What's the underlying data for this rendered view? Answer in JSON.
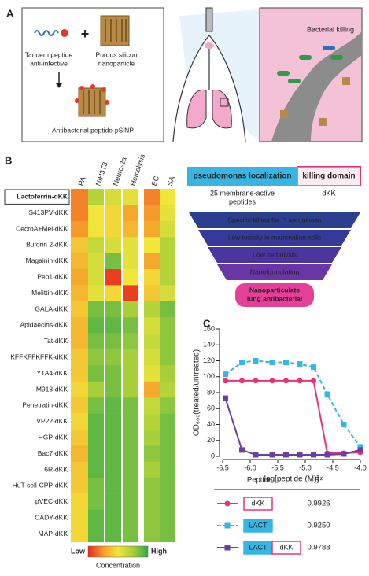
{
  "panel_labels": [
    "A",
    "B",
    "C"
  ],
  "panel_a": {
    "peptide": [
      "Tandem peptide",
      "anti-infective"
    ],
    "plus": "+",
    "particle": [
      "Porous silicon",
      "nanoparticle"
    ],
    "product": "Antibacterial peptide-pSiNP",
    "zoom": "Bacterial killing"
  },
  "flow": {
    "domains": [
      "pseudomonas localization",
      "killing domain"
    ],
    "domain_notes": [
      [
        "25 membrane-active",
        "peptides"
      ],
      [
        "dKK"
      ]
    ],
    "steps": [
      "Specific killing for P. aeruginosa",
      "Low toxicity in mammalian cells",
      "Low hemolysis",
      "Nanoformulation"
    ],
    "result": [
      "Nanoparticulate",
      "lung antibacterial"
    ]
  },
  "chart_data": [
    {
      "type": "heatmap",
      "columns": [
        "PA",
        "NIH3T3",
        "Neuro-2a",
        "Hemolysis",
        "EC",
        "SA"
      ],
      "rows": [
        "Lactoferrin-dKK",
        "S413PV-dKK",
        "CecroA+Mel-dKK",
        "Buforin 2-dKK",
        "Magainin-dKK",
        "Pep1-dKK",
        "Melittin-dKK",
        "GALA-dKK",
        "Apidaecins-dKK",
        "Tat-dKK",
        "KFFKFFKFFK-dKK",
        "YTA4-dKK",
        "M918-dKK",
        "Penetratin-dKK",
        "VP22-dKK",
        "HGP-dKK",
        "Bac7-dKK",
        "6R-dKK",
        "HuT-cell-CPP-dKK",
        "pVEC-dKK",
        "CADY-dKK",
        "MAP-dKK"
      ],
      "values": [
        [
          0.2,
          0.7,
          0.6,
          0.55,
          0.2,
          0.5
        ],
        [
          0.2,
          0.5,
          0.45,
          0.3,
          0.25,
          0.55
        ],
        [
          0.25,
          0.5,
          0.45,
          0.35,
          0.3,
          0.6
        ],
        [
          0.4,
          0.65,
          0.6,
          0.55,
          0.5,
          0.7
        ],
        [
          0.35,
          0.6,
          0.85,
          0.55,
          0.3,
          0.7
        ],
        [
          0.3,
          0.6,
          0.05,
          0.5,
          0.45,
          0.7
        ],
        [
          0.35,
          0.55,
          0.45,
          0.05,
          0.4,
          0.6
        ],
        [
          0.4,
          0.85,
          0.85,
          0.75,
          0.7,
          0.85
        ],
        [
          0.35,
          0.9,
          0.9,
          0.85,
          0.6,
          0.8
        ],
        [
          0.35,
          0.85,
          0.85,
          0.8,
          0.65,
          0.8
        ],
        [
          0.4,
          0.8,
          0.8,
          0.75,
          0.6,
          0.8
        ],
        [
          0.4,
          0.85,
          0.85,
          0.75,
          0.55,
          0.75
        ],
        [
          0.45,
          0.75,
          0.85,
          0.75,
          0.3,
          0.7
        ],
        [
          0.4,
          0.85,
          0.9,
          0.85,
          0.65,
          0.8
        ],
        [
          0.45,
          0.9,
          0.9,
          0.85,
          0.7,
          0.85
        ],
        [
          0.4,
          0.9,
          0.9,
          0.85,
          0.75,
          0.85
        ],
        [
          0.35,
          0.9,
          0.9,
          0.85,
          0.8,
          0.85
        ],
        [
          0.4,
          0.9,
          0.9,
          0.85,
          0.75,
          0.85
        ],
        [
          0.4,
          0.85,
          0.9,
          0.85,
          0.8,
          0.85
        ],
        [
          0.45,
          0.85,
          0.9,
          0.85,
          0.8,
          0.85
        ],
        [
          0.45,
          0.9,
          0.9,
          0.85,
          0.8,
          0.85
        ],
        [
          0.45,
          0.9,
          0.9,
          0.85,
          0.8,
          0.85
        ]
      ],
      "clim": [
        0,
        1
      ],
      "colors": [
        "#e8271f",
        "#f59a2a",
        "#f2e63a",
        "#a6cf3a",
        "#2fa84a"
      ],
      "colorbar_labels": [
        "Low",
        "High"
      ],
      "colorbar_title": "Concentration"
    },
    {
      "type": "line",
      "x": [
        -6.45,
        -6.15,
        -5.9,
        -5.6,
        -5.35,
        -5.1,
        -4.85,
        -4.6,
        -4.3,
        -4.0
      ],
      "series": [
        {
          "color": "#e8337a",
          "marker": "circle",
          "dashed": false,
          "values": [
            95,
            95,
            95,
            95,
            95,
            95,
            95,
            4,
            4,
            5
          ]
        },
        {
          "color": "#35b6e4",
          "marker": "square",
          "dashed": true,
          "values": [
            103,
            118,
            120,
            118,
            118,
            116,
            112,
            78,
            40,
            12
          ]
        },
        {
          "color": "#6a3fa0",
          "marker": "square",
          "dashed": false,
          "values": [
            73,
            8,
            2,
            2,
            2,
            2,
            2,
            2,
            3,
            8
          ]
        }
      ],
      "xlim": [
        -6.5,
        -4.0
      ],
      "ylim": [
        0,
        160
      ],
      "xticks": [
        -6.5,
        {
          "value": -6,
          "label": "-6.0"
        },
        -5.5,
        {
          "value": -5,
          "label": "-5.0"
        },
        -4.5,
        {
          "value": -4,
          "label": "-4.0"
        }
      ],
      "yticks": [
        0,
        20,
        40,
        60,
        80,
        100,
        120,
        140,
        160
      ],
      "xlabel": "log[peptide (M)]",
      "ylabel": "OD₆₀₀(treated/untreated)",
      "legend_header": [
        "Peptide",
        "R²"
      ],
      "legend": [
        {
          "labels": [
            "dKK"
          ],
          "label_colors": [
            "#e8337a"
          ],
          "r2": "0.9926"
        },
        {
          "labels": [
            "LACT"
          ],
          "label_colors": [
            "#35b6e4"
          ],
          "r2": "0.9250"
        },
        {
          "labels": [
            "LACT",
            "dKK"
          ],
          "label_colors": [
            "#35b6e4",
            "#e8337a"
          ],
          "r2": "0.9788"
        }
      ]
    }
  ]
}
